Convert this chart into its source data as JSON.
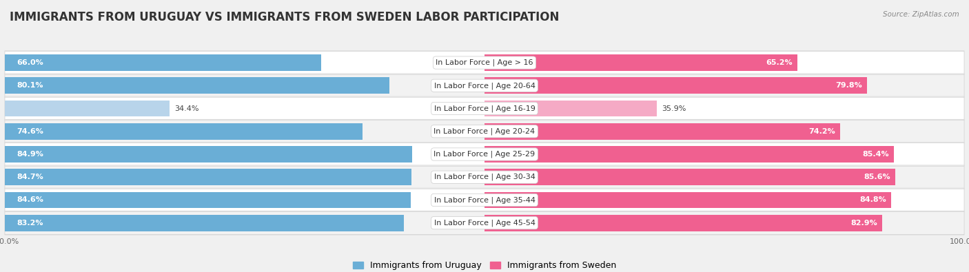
{
  "title": "IMMIGRANTS FROM URUGUAY VS IMMIGRANTS FROM SWEDEN LABOR PARTICIPATION",
  "source": "Source: ZipAtlas.com",
  "categories": [
    "In Labor Force | Age > 16",
    "In Labor Force | Age 20-64",
    "In Labor Force | Age 16-19",
    "In Labor Force | Age 20-24",
    "In Labor Force | Age 25-29",
    "In Labor Force | Age 30-34",
    "In Labor Force | Age 35-44",
    "In Labor Force | Age 45-54"
  ],
  "uruguay_values": [
    66.0,
    80.1,
    34.4,
    74.6,
    84.9,
    84.7,
    84.6,
    83.2
  ],
  "sweden_values": [
    65.2,
    79.8,
    35.9,
    74.2,
    85.4,
    85.6,
    84.8,
    82.9
  ],
  "uruguay_color_dark": "#6aaed6",
  "uruguay_color_light": "#b8d4ea",
  "sweden_color_dark": "#f06090",
  "sweden_color_light": "#f5aac5",
  "bar_height": 0.72,
  "background_color": "#f0f0f0",
  "row_bg_even": "#f8f8f8",
  "row_bg_odd": "#efefef",
  "title_fontsize": 12,
  "label_fontsize": 8,
  "value_fontsize": 8,
  "max_value": 100.0,
  "legend_labels": [
    "Immigrants from Uruguay",
    "Immigrants from Sweden"
  ],
  "threshold": 50
}
